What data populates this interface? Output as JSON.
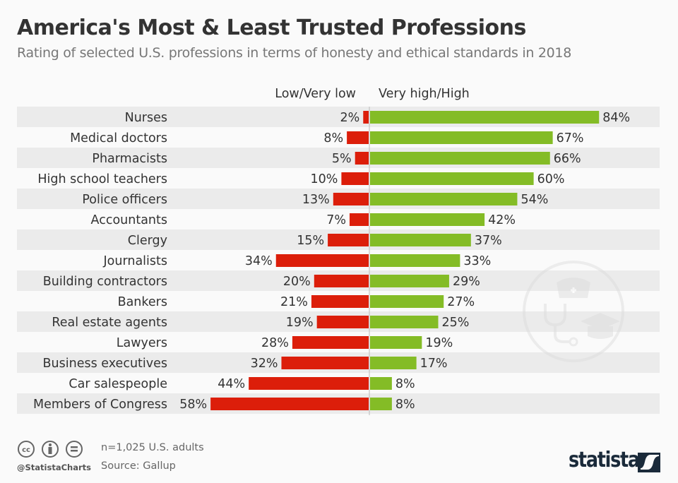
{
  "header": {
    "title": "America's Most & Least Trusted Professions",
    "subtitle": "Rating of selected U.S. professions in terms of honesty and ethical standards in 2018"
  },
  "chart_data": {
    "type": "bar",
    "orientation": "horizontal-diverging",
    "categories": [
      "Nurses",
      "Medical doctors",
      "Pharmacists",
      "High school teachers",
      "Police officers",
      "Accountants",
      "Clergy",
      "Journalists",
      "Building contractors",
      "Bankers",
      "Real estate agents",
      "Lawyers",
      "Business executives",
      "Car salespeople",
      "Members of Congress"
    ],
    "series": [
      {
        "name": "Low/Very low",
        "color": "#dc1e0a",
        "values": [
          2,
          8,
          5,
          10,
          13,
          7,
          15,
          34,
          20,
          21,
          19,
          28,
          32,
          44,
          58
        ]
      },
      {
        "name": "Very high/High",
        "color": "#84bc26",
        "values": [
          84,
          67,
          66,
          60,
          54,
          42,
          37,
          33,
          29,
          27,
          25,
          19,
          17,
          8,
          8
        ]
      }
    ],
    "value_suffix": "%",
    "legend_placement": "top",
    "grid": false
  },
  "footer": {
    "note": "n=1,025 U.S. adults",
    "source": "Source: Gallup",
    "handle": "@StatistaCharts",
    "logo": "statista",
    "license_icons": [
      "cc-icon",
      "by-icon",
      "nd-icon"
    ]
  }
}
